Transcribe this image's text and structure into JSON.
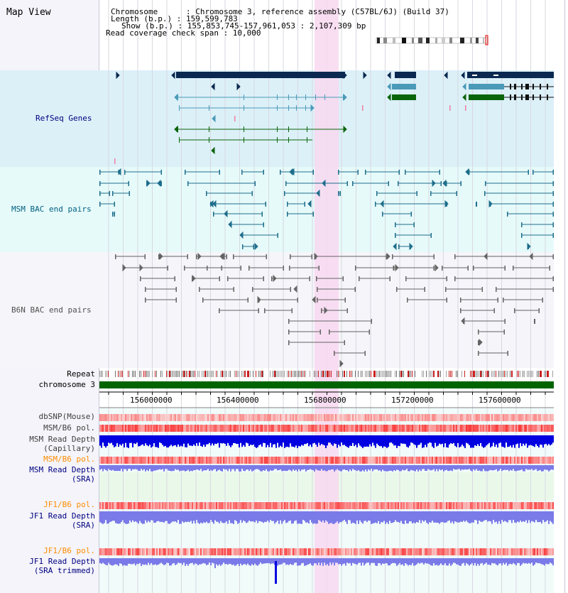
{
  "header": {
    "title": "Map View",
    "info_lines": [
      "Chromosome      : Chromosome 3, reference assembly (C57BL/6J) (Build 37)",
      "Length (b.p.) : 159,599,783",
      "Show (b.p.) : 155,853,745-157,961,053 : 2,107,309 bp",
      "Read coverage check span : 10,000"
    ]
  },
  "tracks": {
    "refseq": "RefSeq Genes",
    "msm_bac": "MSM BAC end pairs",
    "b6n_bac": "B6N BAC end pairs",
    "repeat": "Repeat",
    "chromosome": "chromosome 3",
    "dbsnp": "dbSNP(Mouse)",
    "msm_b6_pol_1": "MSM/B6 pol.",
    "msm_read_depth_cap_1": "MSM Read Depth",
    "msm_read_depth_cap_2": "(Capillary)",
    "msm_b6_pol_2": "MSM/B6 pol.",
    "msm_read_depth_sra_1": "MSM Read Depth",
    "msm_read_depth_sra_2": "(SRA)",
    "jf1_b6_pol_1": "JF1/B6 pol.",
    "jf1_read_depth_sra_1": "JF1 Read Depth",
    "jf1_read_depth_sra_2": "(SRA)",
    "jf1_b6_pol_2": "JF1/B6 pol.",
    "jf1_read_depth_trim_1": "JF1 Read Depth",
    "jf1_read_depth_trim_2": "(SRA trimmed)"
  },
  "ruler": {
    "ticks": [
      "156000000",
      "156400000",
      "156800000",
      "157200000",
      "157600000"
    ]
  },
  "colors": {
    "refseq_bg": "#dcf0f8",
    "msm_bg": "#e6fafa",
    "b6n_bg": "#f5f5fa",
    "gene_dark": "#0a2850",
    "gene_teal": "#4a9ab8",
    "gene_green": "#0a640a",
    "highlight": "#f8d8f0",
    "chromosome_bar": "#006400",
    "label_navy": "#000080",
    "label_teal": "#006080",
    "label_orange": "#ff8c00",
    "depth_blue": "#0000e0",
    "depth_light": "#7a7ae8"
  }
}
